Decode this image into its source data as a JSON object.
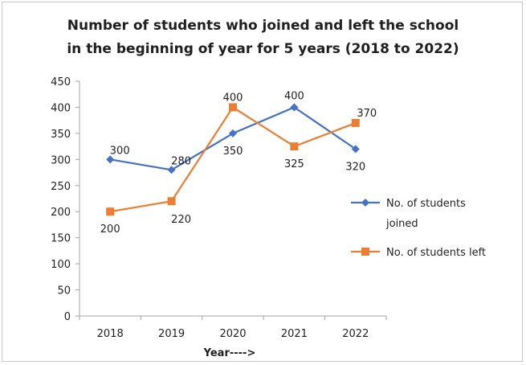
{
  "chart_data": {
    "type": "line",
    "title": "Number of students who joined and left the school in the beginning of year for 5 years (2018 to 2022)",
    "title_lines": [
      "Number of students who joined and left the school",
      "in the beginning of year for 5 years (2018 to 2022)"
    ],
    "xlabel": "Year---->",
    "ylabel": "",
    "categories": [
      "2018",
      "2019",
      "2020",
      "2021",
      "2022"
    ],
    "ylim": [
      0,
      450
    ],
    "yticks": [
      0,
      50,
      100,
      150,
      200,
      250,
      300,
      350,
      400,
      450
    ],
    "grid": false,
    "legend_position": "right",
    "series": [
      {
        "name": "No. of students joined",
        "legend_lines": [
          "No. of students",
          "joined"
        ],
        "values": [
          300,
          280,
          350,
          400,
          320
        ],
        "color": "#4472c4",
        "marker": "diamond"
      },
      {
        "name": "No. of students left",
        "legend_lines": [
          "No. of students left"
        ],
        "values": [
          200,
          220,
          400,
          325,
          370
        ],
        "color": "#ed7d31",
        "marker": "square"
      }
    ]
  }
}
